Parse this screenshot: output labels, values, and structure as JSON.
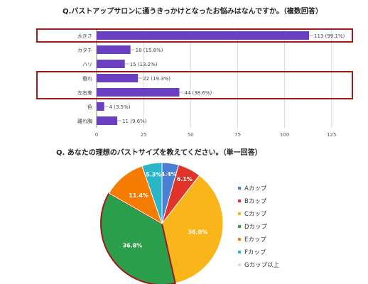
{
  "colors": {
    "bar": "#6a3fc0",
    "highlight_box": "#9b1b1b",
    "grid": "#d9d9d9",
    "pie": [
      "#4a7fd4",
      "#e0332a",
      "#f9b51a",
      "#2a9e4a",
      "#f57c00",
      "#2ab5c9",
      "#dddddd"
    ]
  },
  "chart_data": [
    {
      "type": "bar",
      "orientation": "horizontal",
      "title": "Q.バストアップサロンに通うきっかけとなったお悩みはなんですか。（複数回答）",
      "categories": [
        "大きさ",
        "カタチ",
        "ハリ",
        "垂れ",
        "左右差",
        "色",
        "離れ胸"
      ],
      "values": [
        113,
        18,
        15,
        22,
        44,
        4,
        11
      ],
      "data_labels": [
        "113 (99.1%)",
        "18 (15.8%)",
        "15 (13.2%)",
        "22 (19.3%)",
        "44 (38.6%)",
        "4 (3.5%)",
        "11 (9.6%)"
      ],
      "xlim": [
        0,
        130
      ],
      "xticks": [
        "0",
        "25",
        "50",
        "75",
        "100",
        "125"
      ],
      "grid": true,
      "highlighted_groups": [
        [
          "大きさ"
        ],
        [
          "垂れ",
          "左右差"
        ]
      ]
    },
    {
      "type": "pie",
      "title": "Q. あなたの理想のバストサイズを教えてください。（単一回答）",
      "labels": [
        "Aカップ",
        "Bカップ",
        "Cカップ",
        "Dカップ",
        "Eカップ",
        "Fカップ",
        "Gカップ以上"
      ],
      "values": [
        4.4,
        6.1,
        36.0,
        36.8,
        11.4,
        5.3,
        0
      ],
      "slice_labels": [
        "4.4%",
        "6.1%",
        "36.0%",
        "36.8%",
        "11.4%",
        "5.3%",
        ""
      ],
      "highlighted": [
        "Dカップ"
      ],
      "legend_position": "right"
    }
  ]
}
